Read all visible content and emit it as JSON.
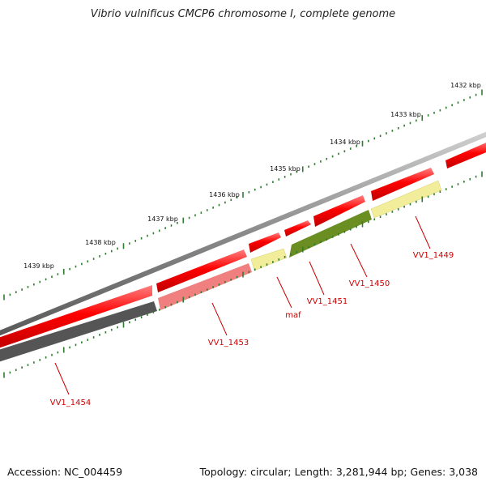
{
  "title": "Vibrio vulnificus CMCP6 chromosome I, complete genome",
  "footer": {
    "accession": "Accession: NC_004459",
    "summary": "Topology: circular; Length: 3,281,944 bp; Genes: 3,038"
  },
  "colors": {
    "backbone": "#7f7f7f",
    "tick": "#2e7d2e",
    "forward": "#ff0000",
    "label": "#cc0000"
  },
  "scale_labels": [
    "1432 kbp",
    "1433 kbp",
    "1434 kbp",
    "1435 kbp",
    "1436 kbp",
    "1437 kbp",
    "1438 kbp",
    "1439 kbp"
  ],
  "genes": [
    {
      "label": "VV1_1449",
      "color": "#f1ed9a",
      "strand": "reverse"
    },
    {
      "label": "VV1_1450",
      "color": "#6b8e23",
      "strand": "reverse"
    },
    {
      "label": "VV1_1451",
      "color": "#6b8e23",
      "strand": "reverse"
    },
    {
      "label": "maf",
      "color": "#f1ed9a",
      "strand": "reverse"
    },
    {
      "label": "VV1_1453",
      "color": "#f08080",
      "strand": "reverse"
    },
    {
      "label": "VV1_1454",
      "color": "#555555",
      "strand": "reverse"
    }
  ]
}
